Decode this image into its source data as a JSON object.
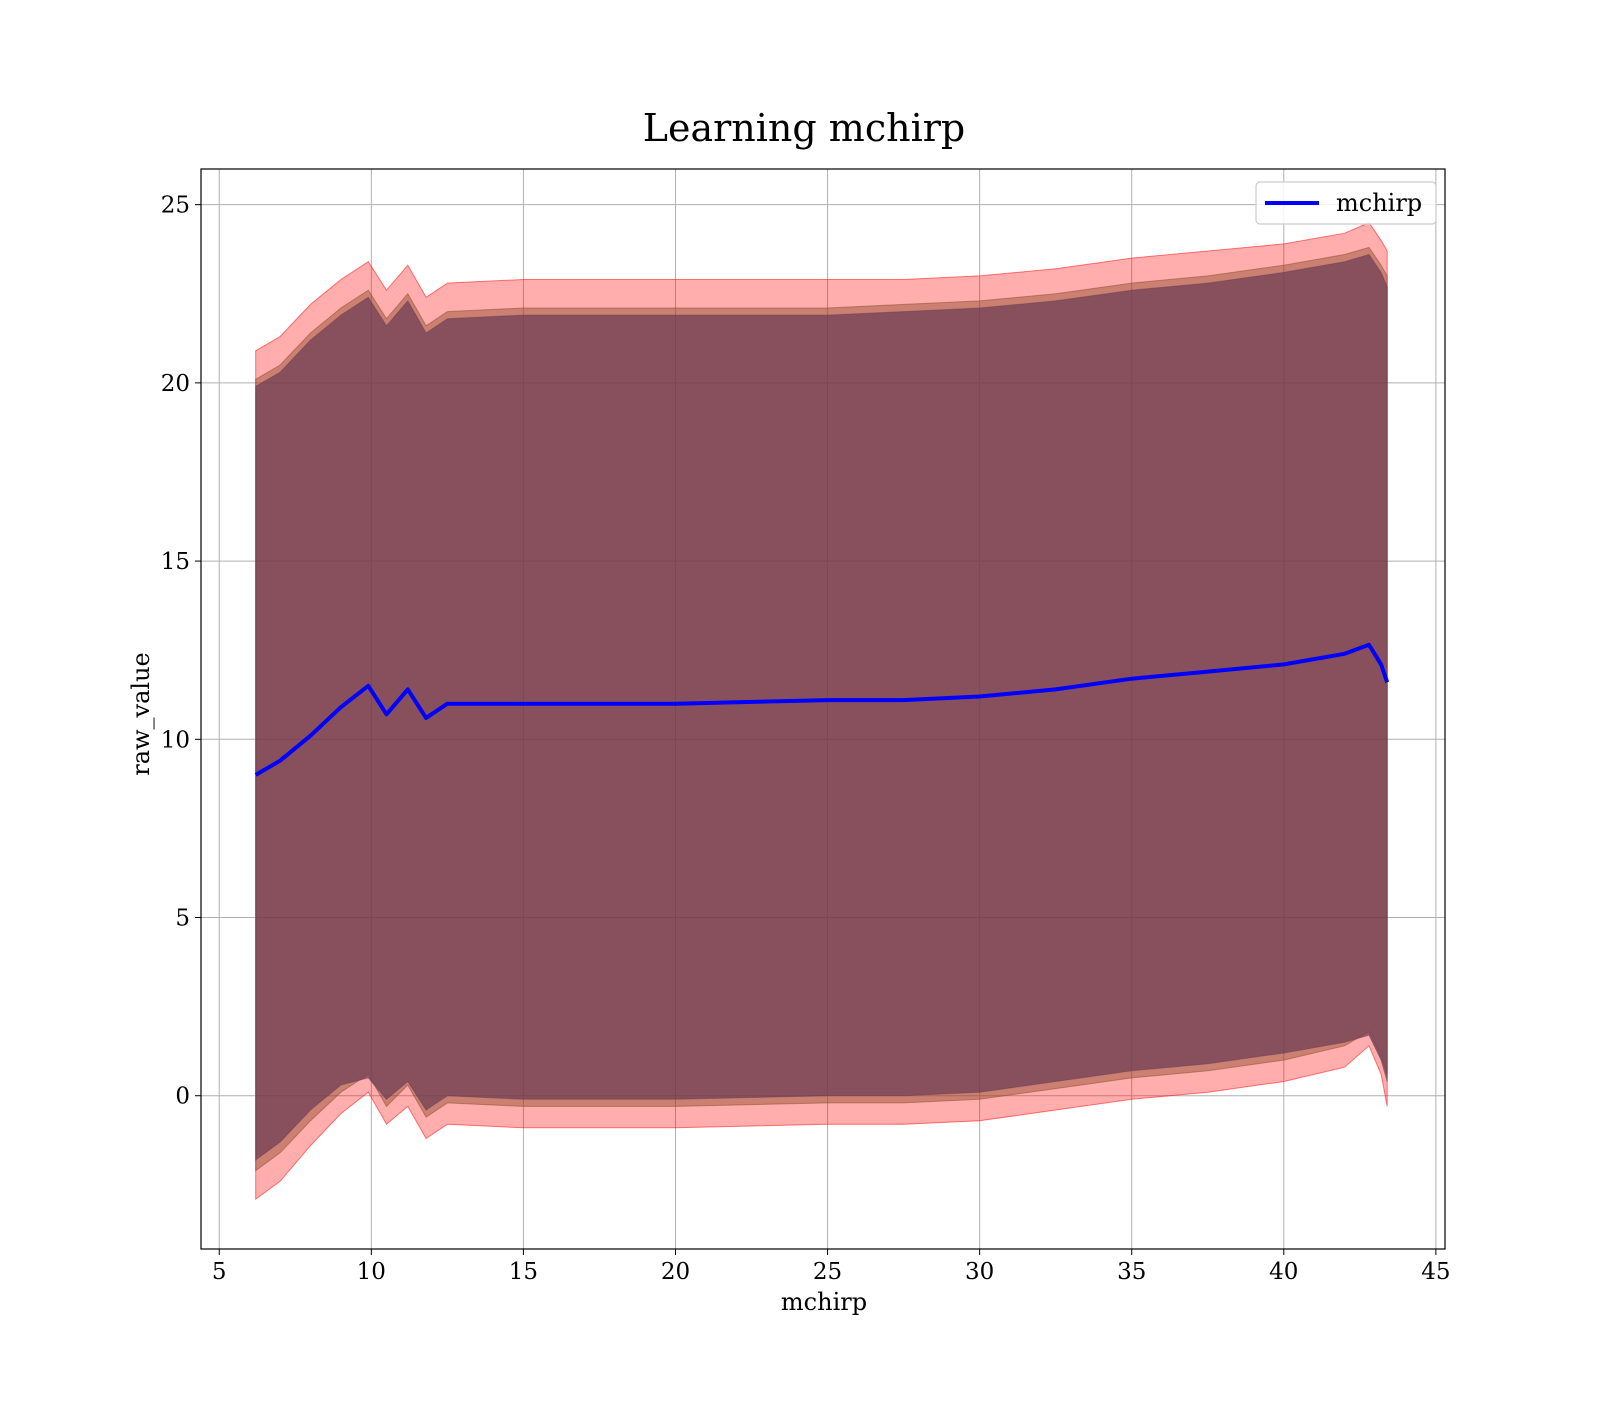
{
  "chart_data": {
    "type": "area",
    "title": "Learning mchirp",
    "xlabel": "mchirp",
    "ylabel": "raw_value",
    "xlim": [
      4.4,
      45.3
    ],
    "ylim": [
      -4.3,
      26.0
    ],
    "xticks": [
      5,
      10,
      15,
      20,
      25,
      30,
      35,
      40,
      45
    ],
    "xtick_labels": [
      "5",
      "10",
      "15",
      "20",
      "25",
      "30",
      "35",
      "40",
      "45"
    ],
    "yticks": [
      0,
      5,
      10,
      15,
      20,
      25
    ],
    "ytick_labels": [
      "0",
      "5",
      "10",
      "15",
      "20",
      "25"
    ],
    "grid": true,
    "legend": {
      "position": "top-right",
      "entries": [
        "mchirp"
      ]
    },
    "x": [
      6.2,
      7,
      8,
      9,
      9.9,
      10.5,
      11.2,
      11.8,
      12.5,
      15,
      20,
      25,
      27.5,
      30,
      32.5,
      35,
      37.5,
      40,
      42,
      42.8,
      43.2,
      43.4
    ],
    "series": [
      {
        "name": "mchirp",
        "color": "#0000ff",
        "role": "line",
        "values": [
          9.0,
          9.4,
          10.1,
          10.9,
          11.5,
          10.7,
          11.4,
          10.6,
          11.0,
          11.0,
          11.0,
          11.1,
          11.1,
          11.2,
          11.4,
          11.7,
          11.9,
          12.1,
          12.4,
          12.65,
          12.1,
          11.6
        ]
      },
      {
        "name": "",
        "color": "#ff0000",
        "role": "band",
        "lower": [
          -2.9,
          -2.4,
          -1.4,
          -0.5,
          0.1,
          -0.8,
          -0.3,
          -1.2,
          -0.8,
          -0.9,
          -0.9,
          -0.8,
          -0.8,
          -0.7,
          -0.4,
          -0.1,
          0.1,
          0.4,
          0.8,
          1.4,
          0.6,
          -0.3
        ],
        "upper": [
          20.9,
          21.3,
          22.2,
          22.9,
          23.4,
          22.6,
          23.3,
          22.4,
          22.8,
          22.9,
          22.9,
          22.9,
          22.9,
          23.0,
          23.2,
          23.5,
          23.7,
          23.9,
          24.2,
          24.5,
          24.0,
          23.7
        ]
      },
      {
        "name": "",
        "color": "#8b4a2b",
        "role": "band",
        "lower": [
          -2.1,
          -1.6,
          -0.7,
          0.1,
          0.6,
          -0.3,
          0.3,
          -0.6,
          -0.2,
          -0.3,
          -0.3,
          -0.2,
          -0.2,
          -0.1,
          0.2,
          0.5,
          0.7,
          1.0,
          1.4,
          1.8,
          1.1,
          0.6
        ],
        "upper": [
          20.1,
          20.5,
          21.4,
          22.1,
          22.6,
          21.8,
          22.5,
          21.6,
          22.0,
          22.1,
          22.1,
          22.1,
          22.2,
          22.3,
          22.5,
          22.8,
          23.0,
          23.3,
          23.6,
          23.8,
          23.3,
          23.0
        ]
      },
      {
        "name": "",
        "color": "#6a3c52",
        "role": "band",
        "lower": [
          -1.8,
          -1.3,
          -0.4,
          0.3,
          0.5,
          -0.1,
          0.4,
          -0.4,
          0.0,
          -0.1,
          -0.1,
          0.0,
          0.0,
          0.1,
          0.4,
          0.7,
          0.9,
          1.2,
          1.5,
          1.7,
          1.0,
          0.4
        ],
        "upper": [
          19.9,
          20.3,
          21.2,
          21.9,
          22.4,
          21.6,
          22.3,
          21.4,
          21.8,
          21.9,
          21.9,
          21.9,
          22.0,
          22.1,
          22.3,
          22.6,
          22.8,
          23.1,
          23.4,
          23.6,
          23.1,
          22.7
        ]
      }
    ]
  }
}
